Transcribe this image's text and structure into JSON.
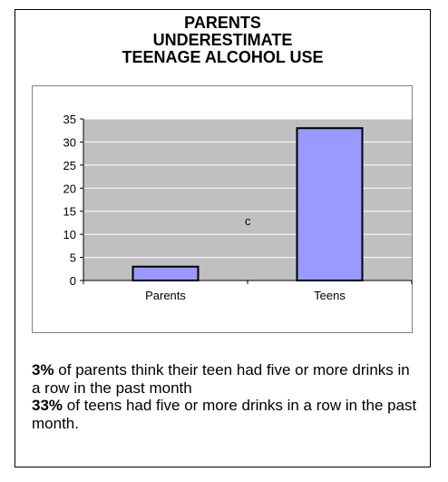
{
  "chart_data": {
    "type": "bar",
    "title_lines": [
      "PARENTS",
      "UNDERESTIMATE",
      "TEENAGE ALCOHOL USE"
    ],
    "categories": [
      "Parents",
      "Teens"
    ],
    "values": [
      3,
      33
    ],
    "ylim": [
      0,
      35
    ],
    "yticks": [
      "0",
      "5",
      "10",
      "15",
      "20",
      "25",
      "30",
      "35"
    ],
    "grid": true,
    "annotation": "c",
    "colors": {
      "bar_fill": "#9999ff",
      "bar_stroke": "#000000",
      "plot_background": "#c0c0c0",
      "gridline": "#ffffff"
    }
  },
  "caption": {
    "line1_bold": "3%",
    "line1_text": " of parents think their teen had five or more drinks in a row in the past month",
    "line2_bold": "33%",
    "line2_text": " of teens had five or more drinks in a row in the past month."
  }
}
